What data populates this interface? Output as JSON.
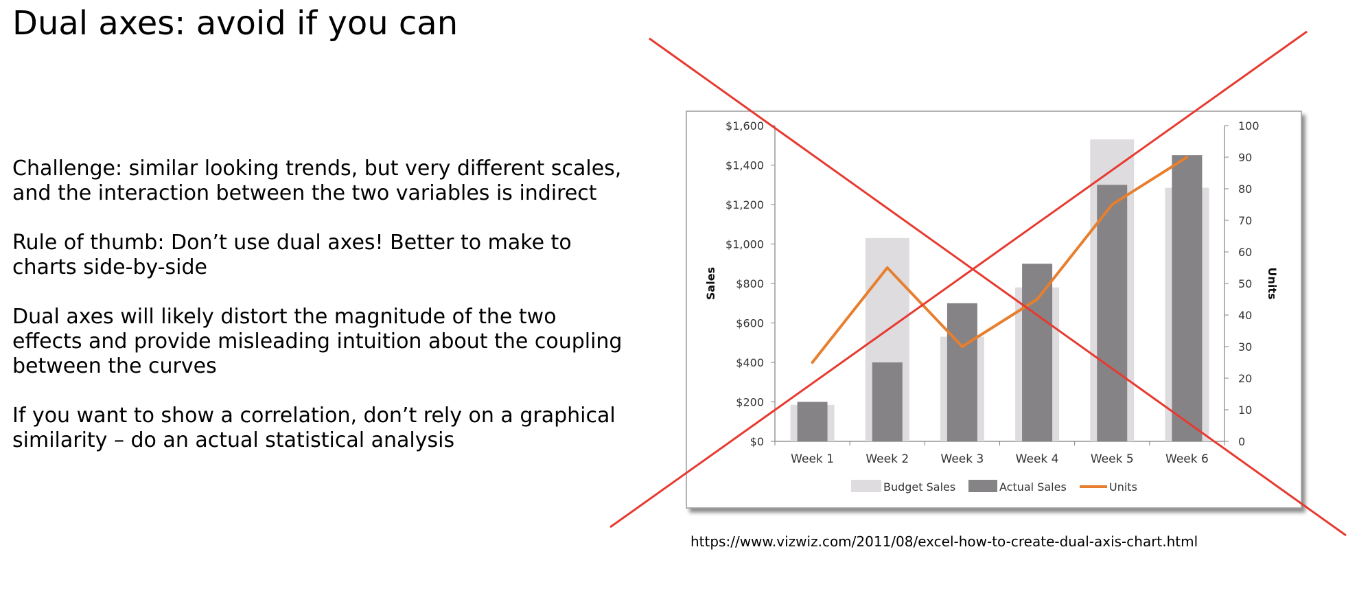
{
  "slide": {
    "title": "Dual axes: avoid if you can",
    "bullets": [
      "Challenge: similar looking trends, but very different scales, and the interaction between the two variables is indirect",
      "Rule of thumb: Don’t use dual axes! Better to make to charts side-by-side",
      "Dual axes will likely distort the magnitude of the two effects and provide misleading intuition about the coupling between the curves",
      "If you want to show a correlation, don’t rely on a graphical similarity – do an actual statistical analysis"
    ],
    "source": "https://www.vizwiz.com/2011/08/excel-how-to-create-dual-axis-chart.html"
  },
  "chart_data": {
    "type": "bar",
    "categories": [
      "Week 1",
      "Week 2",
      "Week 3",
      "Week 4",
      "Week 5",
      "Week 6"
    ],
    "series": [
      {
        "name": "Budget Sales",
        "type": "bar",
        "axis": "left",
        "values": [
          185,
          1030,
          530,
          780,
          1530,
          1285
        ],
        "color": "#dedcdf"
      },
      {
        "name": "Actual Sales",
        "type": "bar",
        "axis": "left",
        "values": [
          200,
          400,
          700,
          900,
          1300,
          1450
        ],
        "color": "#858385"
      },
      {
        "name": "Units",
        "type": "line",
        "axis": "right",
        "values": [
          25,
          55,
          30,
          45,
          75,
          90
        ],
        "color": "#e77f2e"
      }
    ],
    "y_left": {
      "label": "Sales",
      "ylim": [
        0,
        1600
      ],
      "ticks": [
        0,
        200,
        400,
        600,
        800,
        1000,
        1200,
        1400,
        1600
      ],
      "tick_labels": [
        "$0",
        "$200",
        "$400",
        "$600",
        "$800",
        "$1,000",
        "$1,200",
        "$1,400",
        "$1,600"
      ]
    },
    "y_right": {
      "label": "Units",
      "ylim": [
        0,
        100
      ],
      "ticks": [
        0,
        10,
        20,
        30,
        40,
        50,
        60,
        70,
        80,
        90,
        100
      ],
      "tick_labels": [
        "0",
        "10",
        "20",
        "30",
        "40",
        "50",
        "60",
        "70",
        "80",
        "90",
        "100"
      ]
    },
    "legend_position": "bottom",
    "grid": false,
    "crossed_out": true,
    "cross_color": "#e8392f"
  }
}
